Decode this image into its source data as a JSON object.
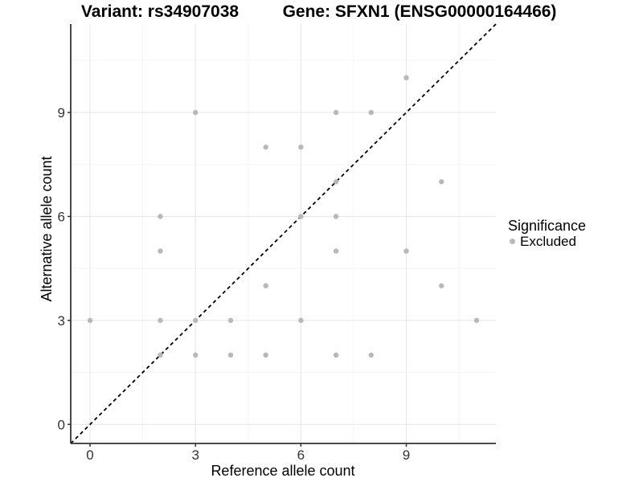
{
  "chart_data": {
    "type": "scatter",
    "title_left": "Variant: rs34907038",
    "title_right": "Gene: SFXN1 (ENSG00000164466)",
    "xlabel": "Reference allele count",
    "ylabel": "Alternative allele count",
    "xlim": [
      -0.55,
      11.55
    ],
    "ylim": [
      -0.55,
      11.55
    ],
    "x_ticks": [
      0,
      3,
      6,
      9
    ],
    "y_ticks": [
      0,
      3,
      6,
      9
    ],
    "x_minor_ticks": [
      1.5,
      4.5,
      7.5,
      10.5
    ],
    "y_minor_ticks": [
      1.5,
      4.5,
      7.5,
      10.5
    ],
    "grid": "major+minor",
    "legend_position": "right",
    "identity_line": {
      "style": "dashed",
      "slope": 1,
      "intercept": 0
    },
    "points": [
      [
        0,
        3
      ],
      [
        2,
        2
      ],
      [
        2,
        3
      ],
      [
        2,
        5
      ],
      [
        2,
        6
      ],
      [
        3,
        2
      ],
      [
        3,
        3
      ],
      [
        3,
        9
      ],
      [
        4,
        2
      ],
      [
        4,
        3
      ],
      [
        5,
        2
      ],
      [
        5,
        4
      ],
      [
        5,
        8
      ],
      [
        6,
        3
      ],
      [
        6,
        6
      ],
      [
        6,
        8
      ],
      [
        7,
        2
      ],
      [
        7,
        5
      ],
      [
        7,
        6
      ],
      [
        7,
        7
      ],
      [
        7,
        9
      ],
      [
        8,
        2
      ],
      [
        8,
        9
      ],
      [
        9,
        5
      ],
      [
        9,
        10
      ],
      [
        10,
        4
      ],
      [
        10,
        7
      ],
      [
        11,
        3
      ]
    ],
    "legend": {
      "title": "Significance",
      "items": [
        {
          "label": "Excluded",
          "marker": "circle",
          "color": "#b8b8b8"
        }
      ]
    },
    "colors": {
      "point": "#b8b8b8",
      "grid_major": "#e7e7e7",
      "grid_minor": "#f3f3f3",
      "axis": "#333333",
      "tick_text": "#333333",
      "identity_line": "#000000",
      "background": "#ffffff"
    }
  }
}
